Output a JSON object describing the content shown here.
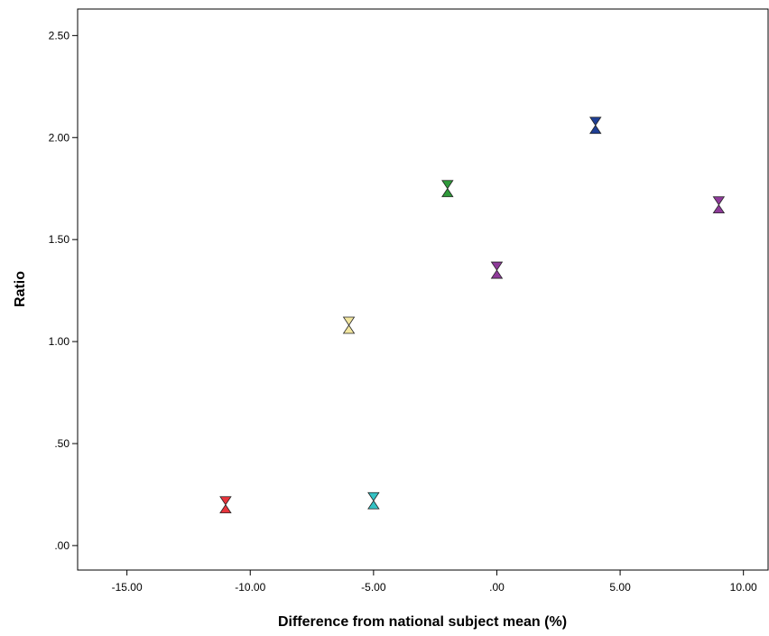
{
  "chart_data": {
    "type": "scatter",
    "xlabel": "Difference from national subject mean (%)",
    "ylabel": "Ratio",
    "xlim": [
      -17,
      11
    ],
    "ylim": [
      -0.12,
      2.63
    ],
    "xticks": [
      -15,
      -10,
      -5,
      0,
      5,
      10
    ],
    "xtick_labels": [
      "-15.00",
      "-10.00",
      "-5.00",
      ".00",
      "5.00",
      "10.00"
    ],
    "yticks": [
      0,
      0.5,
      1,
      1.5,
      2,
      2.5
    ],
    "ytick_labels": [
      ".00",
      ".50",
      "1.00",
      "1.50",
      "2.00",
      "2.50"
    ],
    "grid": false,
    "points": [
      {
        "x": -11,
        "y": 0.2,
        "color": "#e8343c"
      },
      {
        "x": -6,
        "y": 1.08,
        "color": "#f2e6a0"
      },
      {
        "x": -5,
        "y": 0.22,
        "color": "#35c2c4"
      },
      {
        "x": -2,
        "y": 1.75,
        "color": "#2f9a3a"
      },
      {
        "x": 0,
        "y": 1.35,
        "color": "#8e3a99"
      },
      {
        "x": 4,
        "y": 2.06,
        "color": "#1f3f95"
      },
      {
        "x": 9,
        "y": 1.67,
        "color": "#8e3a99"
      }
    ]
  }
}
